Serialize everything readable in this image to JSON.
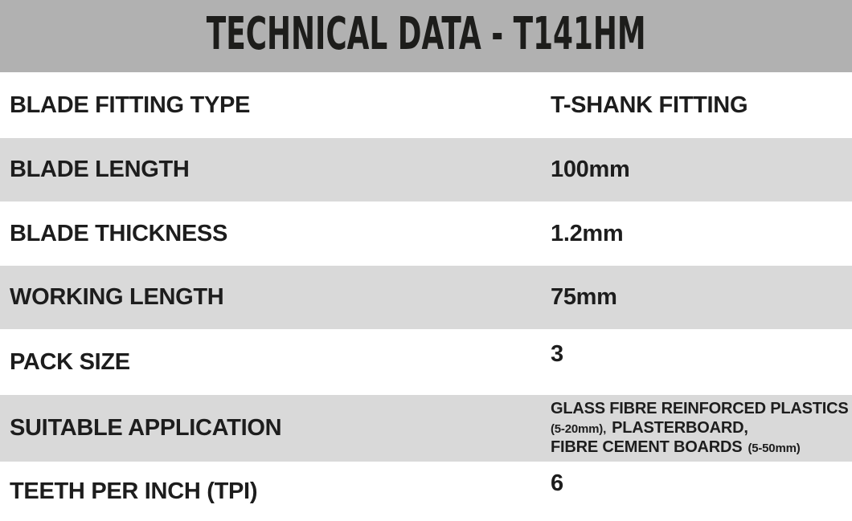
{
  "header": {
    "title": "TECHNICAL DATA - T141HM"
  },
  "table": {
    "rows": [
      {
        "label": "BLADE FITTING TYPE",
        "value": "T-SHANK FITTING"
      },
      {
        "label": "BLADE LENGTH",
        "value": "100mm"
      },
      {
        "label": "BLADE THICKNESS",
        "value": "1.2mm"
      },
      {
        "label": "WORKING LENGTH",
        "value": "75mm"
      },
      {
        "label": "PACK SIZE",
        "value": "3"
      },
      {
        "label": "SUITABLE APPLICATION",
        "value_lines": [
          [
            {
              "text": "GLASS FIBRE REINFORCED PLASTICS",
              "small": false
            }
          ],
          [
            {
              "text": "(5-20mm),",
              "small": true
            },
            {
              "text": "PLASTERBOARD,",
              "small": false
            }
          ],
          [
            {
              "text": "FIBRE CEMENT BOARDS",
              "small": false
            },
            {
              "text": "(5-50mm)",
              "small": true
            }
          ]
        ]
      },
      {
        "label": "TEETH PER INCH (TPI)",
        "value": "6"
      }
    ]
  },
  "appearance": {
    "header_bg": "#b1b1b1",
    "alt_row_bg": "#d9d9d9",
    "row_bg": "#ffffff",
    "text_color": "#1d1d1d"
  }
}
